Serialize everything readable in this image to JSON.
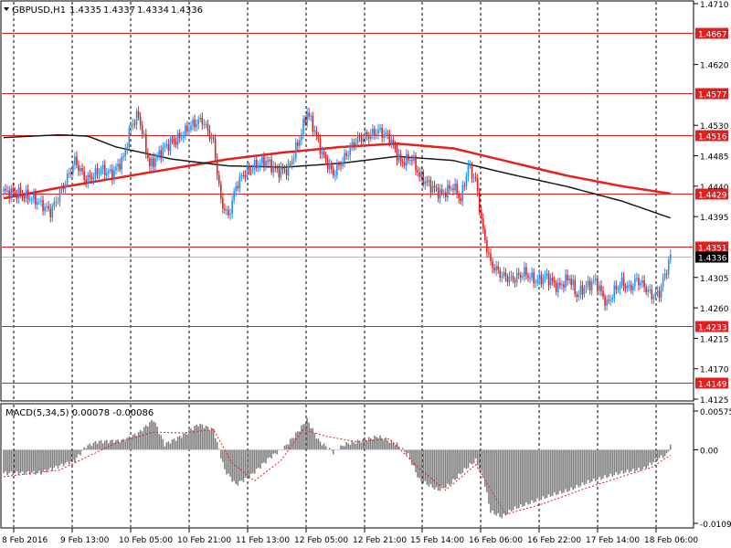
{
  "chart_data": [
    {
      "type": "candlestick",
      "header": {
        "symbol_label": "GBPUSD,H1",
        "ohlc": [
          "1.4335",
          "1.4337",
          "1.4334",
          "1.4336"
        ]
      },
      "ylim": [
        1.4125,
        1.471
      ],
      "y_ticks": [
        1.471,
        1.462,
        1.453,
        1.4485,
        1.444,
        1.4395,
        1.4305,
        1.426,
        1.4215,
        1.417,
        1.4125
      ],
      "x_labels": [
        "8 Feb 2016",
        "9 Feb 13:00",
        "10 Feb 05:00",
        "10 Feb 21:00",
        "11 Feb 13:00",
        "12 Feb 05:00",
        "12 Feb 21:00",
        "15 Feb 14:00",
        "16 Feb 06:00",
        "16 Feb 22:00",
        "17 Feb 14:00",
        "18 Feb 06:00"
      ],
      "horizontal_levels": [
        {
          "label": "1.4667",
          "value": 1.4667
        },
        {
          "label": "1.4577",
          "value": 1.4577
        },
        {
          "label": "1.4516",
          "value": 1.4516
        },
        {
          "label": "1.4429",
          "value": 1.4429
        },
        {
          "label": "1.4351",
          "value": 1.4351
        },
        {
          "label": "1.4233",
          "value": 1.4233
        },
        {
          "label": "1.4149",
          "value": 1.4149
        }
      ],
      "current_price": {
        "label": "1.4336",
        "value": 1.4336
      },
      "close_path": [
        [
          0,
          1.4432
        ],
        [
          10,
          1.4428
        ],
        [
          18,
          1.4418
        ],
        [
          25,
          1.4402
        ],
        [
          32,
          1.444
        ],
        [
          38,
          1.4478
        ],
        [
          44,
          1.4448
        ],
        [
          52,
          1.4465
        ],
        [
          58,
          1.4458
        ],
        [
          64,
          1.4482
        ],
        [
          68,
          1.453
        ],
        [
          72,
          1.4545
        ],
        [
          78,
          1.447
        ],
        [
          86,
          1.4498
        ],
        [
          94,
          1.4512
        ],
        [
          100,
          1.453
        ],
        [
          106,
          1.4538
        ],
        [
          112,
          1.4505
        ],
        [
          116,
          1.4418
        ],
        [
          120,
          1.4395
        ],
        [
          124,
          1.444
        ],
        [
          128,
          1.4458
        ],
        [
          134,
          1.447
        ],
        [
          140,
          1.4478
        ],
        [
          146,
          1.4462
        ],
        [
          152,
          1.4465
        ],
        [
          158,
          1.451
        ],
        [
          162,
          1.455
        ],
        [
          166,
          1.4522
        ],
        [
          170,
          1.4488
        ],
        [
          176,
          1.4458
        ],
        [
          182,
          1.4482
        ],
        [
          188,
          1.4508
        ],
        [
          194,
          1.4514
        ],
        [
          200,
          1.4522
        ],
        [
          206,
          1.4512
        ],
        [
          212,
          1.4475
        ],
        [
          218,
          1.4482
        ],
        [
          222,
          1.4455
        ],
        [
          228,
          1.444
        ],
        [
          234,
          1.4428
        ],
        [
          240,
          1.444
        ],
        [
          244,
          1.442
        ],
        [
          248,
          1.447
        ],
        [
          252,
          1.4448
        ],
        [
          256,
          1.4372
        ],
        [
          260,
          1.4325
        ],
        [
          266,
          1.4308
        ],
        [
          272,
          1.4302
        ],
        [
          278,
          1.4312
        ],
        [
          284,
          1.43
        ],
        [
          290,
          1.4306
        ],
        [
          296,
          1.429
        ],
        [
          302,
          1.4305
        ],
        [
          306,
          1.4278
        ],
        [
          310,
          1.429
        ],
        [
          316,
          1.43
        ],
        [
          322,
          1.4265
        ],
        [
          326,
          1.4285
        ],
        [
          330,
          1.4298
        ],
        [
          334,
          1.4288
        ],
        [
          338,
          1.4302
        ],
        [
          342,
          1.4292
        ],
        [
          346,
          1.4278
        ],
        [
          350,
          1.4282
        ],
        [
          354,
          1.4318
        ],
        [
          356,
          1.4336
        ]
      ],
      "moving_averages": [
        {
          "color": "#e8201a",
          "points": [
            [
              0,
              1.4422
            ],
            [
              30,
              1.4438
            ],
            [
              60,
              1.4452
            ],
            [
              90,
              1.4466
            ],
            [
              120,
              1.448
            ],
            [
              150,
              1.449
            ],
            [
              180,
              1.4498
            ],
            [
              210,
              1.4503
            ],
            [
              240,
              1.4496
            ],
            [
              270,
              1.4476
            ],
            [
              300,
              1.4456
            ],
            [
              330,
              1.444
            ],
            [
              356,
              1.4429
            ]
          ]
        },
        {
          "color": "#1a1a1a",
          "points": [
            [
              0,
              1.4512
            ],
            [
              30,
              1.4516
            ],
            [
              45,
              1.4514
            ],
            [
              60,
              1.4498
            ],
            [
              90,
              1.448
            ],
            [
              120,
              1.447
            ],
            [
              150,
              1.4468
            ],
            [
              180,
              1.4474
            ],
            [
              210,
              1.4484
            ],
            [
              240,
              1.4478
            ],
            [
              270,
              1.4458
            ],
            [
              300,
              1.444
            ],
            [
              330,
              1.4418
            ],
            [
              356,
              1.4393
            ]
          ]
        }
      ]
    },
    {
      "type": "bar",
      "header": {
        "label": "MACD(5,34,5) 0.00078 -0.00086"
      },
      "ylim": [
        -0.01092,
        0.00575
      ],
      "y_ticks": [
        0.00575,
        0.0,
        -0.01092
      ],
      "y_tick_labels": [
        "0.00575",
        "0.00",
        "-0.01092"
      ],
      "histogram_path": [
        [
          0,
          -0.0035
        ],
        [
          20,
          -0.0034
        ],
        [
          38,
          -0.0016
        ],
        [
          44,
          0.0005
        ],
        [
          50,
          0.0012
        ],
        [
          64,
          0.0014
        ],
        [
          72,
          0.0025
        ],
        [
          80,
          0.0045
        ],
        [
          86,
          0.0008
        ],
        [
          96,
          0.0022
        ],
        [
          104,
          0.0038
        ],
        [
          112,
          0.003
        ],
        [
          118,
          -0.003
        ],
        [
          124,
          -0.0052
        ],
        [
          132,
          -0.0038
        ],
        [
          142,
          -0.0012
        ],
        [
          150,
          0.0004
        ],
        [
          158,
          0.003
        ],
        [
          162,
          0.0045
        ],
        [
          168,
          0.0014
        ],
        [
          176,
          -0.0004
        ],
        [
          182,
          0.0008
        ],
        [
          192,
          0.0014
        ],
        [
          200,
          0.002
        ],
        [
          210,
          0.0008
        ],
        [
          216,
          -0.0008
        ],
        [
          222,
          -0.0045
        ],
        [
          232,
          -0.006
        ],
        [
          238,
          -0.0052
        ],
        [
          246,
          -0.003
        ],
        [
          252,
          -0.0016
        ],
        [
          256,
          -0.004
        ],
        [
          260,
          -0.0092
        ],
        [
          266,
          -0.01
        ],
        [
          272,
          -0.0088
        ],
        [
          282,
          -0.0078
        ],
        [
          292,
          -0.0068
        ],
        [
          302,
          -0.006
        ],
        [
          312,
          -0.0048
        ],
        [
          322,
          -0.004
        ],
        [
          330,
          -0.0034
        ],
        [
          342,
          -0.0028
        ],
        [
          350,
          -0.0012
        ],
        [
          354,
          -0.0008
        ],
        [
          356,
          0.0008
        ]
      ],
      "signal_path": [
        [
          0,
          -0.004
        ],
        [
          30,
          -0.003
        ],
        [
          48,
          -0.0006
        ],
        [
          60,
          0.001
        ],
        [
          80,
          0.0026
        ],
        [
          96,
          0.0025
        ],
        [
          112,
          0.003
        ],
        [
          122,
          -0.002
        ],
        [
          134,
          -0.0046
        ],
        [
          148,
          -0.0016
        ],
        [
          160,
          0.003
        ],
        [
          172,
          0.002
        ],
        [
          188,
          0.0012
        ],
        [
          206,
          0.0016
        ],
        [
          222,
          -0.0028
        ],
        [
          236,
          -0.006
        ],
        [
          252,
          -0.0022
        ],
        [
          268,
          -0.0096
        ],
        [
          288,
          -0.008
        ],
        [
          310,
          -0.0058
        ],
        [
          330,
          -0.004
        ],
        [
          346,
          -0.0026
        ],
        [
          356,
          -0.0008
        ]
      ]
    }
  ]
}
